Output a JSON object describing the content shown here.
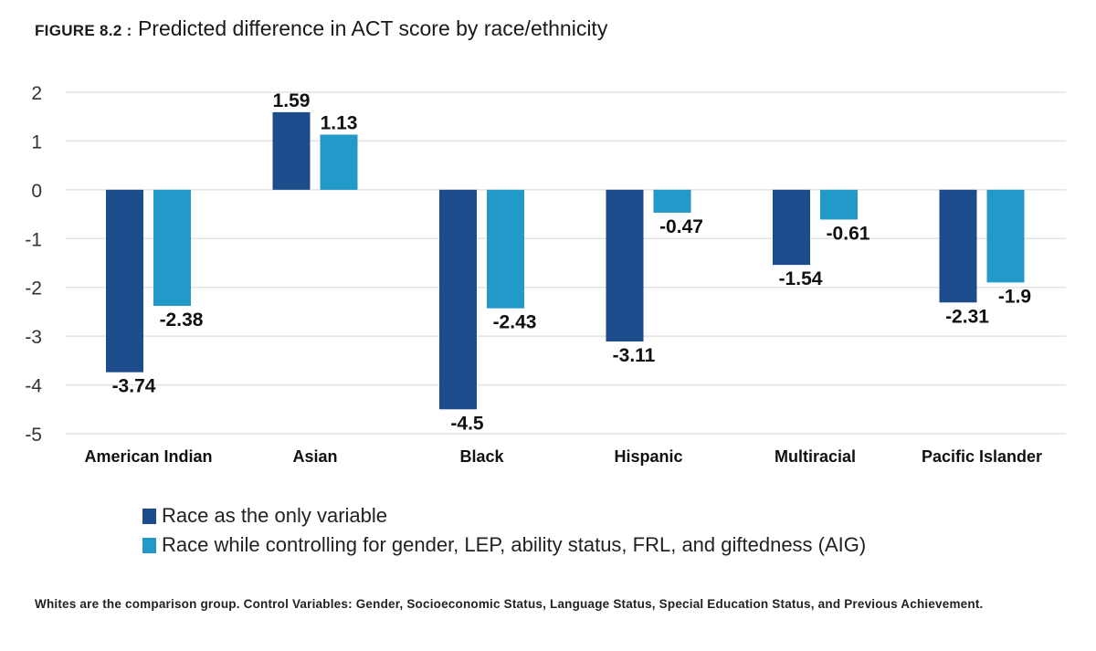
{
  "figure": {
    "label": "FIGURE 8.2 :",
    "title": "Predicted difference in ACT score by race/ethnicity"
  },
  "chart_data": {
    "type": "bar",
    "title": "Predicted difference in ACT score by race/ethnicity",
    "xlabel": "",
    "ylabel": "",
    "ylim": [
      -5,
      2
    ],
    "yticks": [
      2,
      1,
      0,
      -1,
      -2,
      -3,
      -4,
      -5
    ],
    "grid": true,
    "legend_position": "bottom",
    "categories": [
      "American Indian",
      "Asian",
      "Black",
      "Hispanic",
      "Multiracial",
      "Pacific Islander"
    ],
    "series": [
      {
        "name": "Race as the only variable",
        "color": "#1c4c8c",
        "values": [
          -3.74,
          1.59,
          -4.5,
          -3.11,
          -1.54,
          -2.31
        ],
        "labels": [
          "-3.74",
          "1.59",
          "-4.5",
          "-3.11",
          "-1.54",
          "-2.31"
        ]
      },
      {
        "name": "Race while controlling for gender, LEP, ability status, FRL, and giftedness (AIG)",
        "color": "#2399c9",
        "values": [
          -2.38,
          1.13,
          -2.43,
          -0.47,
          -0.61,
          -1.9
        ],
        "labels": [
          "-2.38",
          "1.13",
          "-2.43",
          "-0.47",
          "-0.61",
          "-1.9"
        ]
      }
    ]
  },
  "footnote": "Whites are the comparison group. Control Variables: Gender, Socioeconomic Status, Language Status, Special Education Status, and Previous Achievement."
}
